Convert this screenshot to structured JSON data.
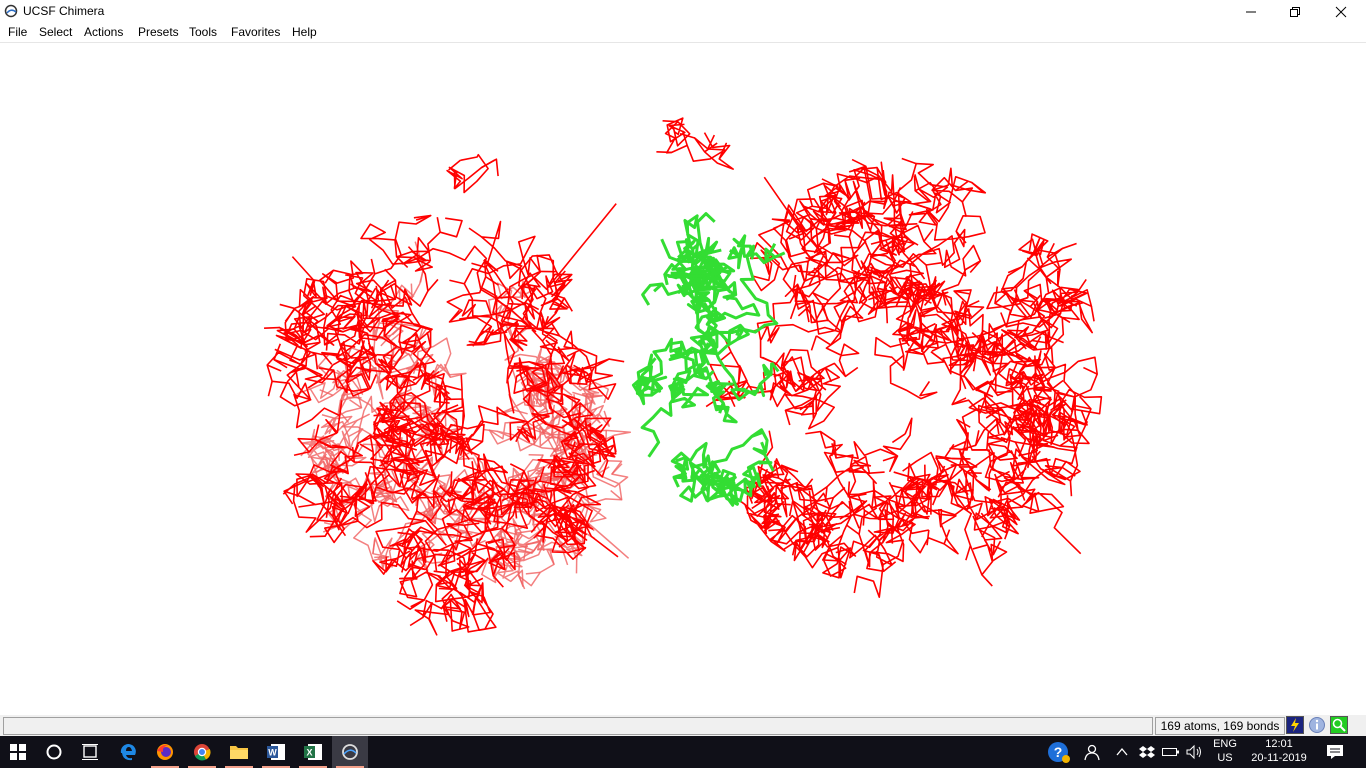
{
  "window": {
    "title": "UCSF Chimera"
  },
  "menu": [
    "File",
    "Select",
    "Actions",
    "Presets",
    "Tools",
    "Favorites",
    "Help"
  ],
  "viewer": {
    "background": "#ffffff",
    "primary_color": "#ff0000",
    "secondary_color": "#f06060",
    "selection_color": "#33dd33"
  },
  "status": {
    "message": "",
    "info": "169 atoms, 169 bonds"
  },
  "taskbar": {
    "apps": [
      "start-icon",
      "search-icon",
      "task-view-icon",
      "edge-icon",
      "firefox-icon",
      "chrome-icon",
      "file-explorer-icon",
      "word-icon",
      "excel-icon",
      "chimera-icon"
    ],
    "language": {
      "line1": "ENG",
      "line2": "US"
    },
    "time": "12:01",
    "date": "20-11-2019"
  }
}
